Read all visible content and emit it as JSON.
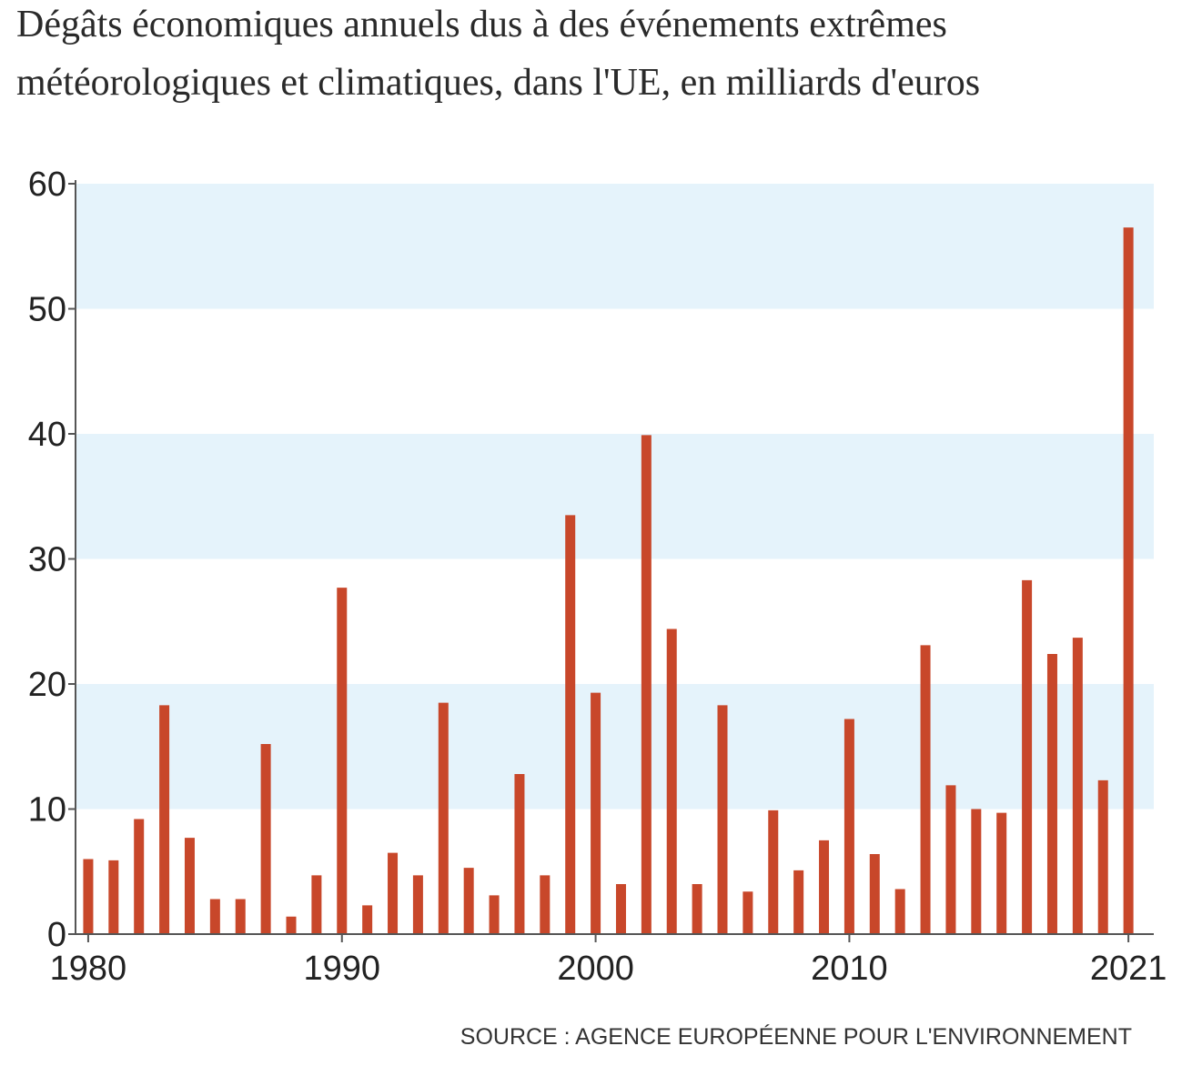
{
  "chart_data": {
    "type": "bar",
    "title": [
      "Dégâts économiques annuels dus à des événements extrêmes",
      "météorologiques et climatiques, dans l'UE, en milliards d'euros"
    ],
    "source": "SOURCE :  AGENCE EUROPÉENNE POUR L'ENVIRONNEMENT",
    "x": [
      1980,
      1981,
      1982,
      1983,
      1984,
      1985,
      1986,
      1987,
      1988,
      1989,
      1990,
      1991,
      1992,
      1993,
      1994,
      1995,
      1996,
      1997,
      1998,
      1999,
      2000,
      2001,
      2002,
      2003,
      2004,
      2005,
      2006,
      2007,
      2008,
      2009,
      2010,
      2011,
      2012,
      2013,
      2014,
      2015,
      2016,
      2017,
      2018,
      2019,
      2020,
      2021
    ],
    "values": [
      6.0,
      5.9,
      9.2,
      18.3,
      7.7,
      2.8,
      2.8,
      15.2,
      1.4,
      4.7,
      27.7,
      2.3,
      6.5,
      4.7,
      18.5,
      5.3,
      3.1,
      12.8,
      4.7,
      33.5,
      19.3,
      4.0,
      39.9,
      24.4,
      4.0,
      18.3,
      3.4,
      9.9,
      5.1,
      7.5,
      17.2,
      6.4,
      3.6,
      23.1,
      11.9,
      10.0,
      9.7,
      28.3,
      22.4,
      23.7,
      12.3,
      56.5
    ],
    "color": "#c8472a",
    "xlim": [
      1979.5,
      2022
    ],
    "xticks": [
      1980,
      1990,
      2000,
      2010,
      2021
    ],
    "ylim": [
      0,
      60
    ],
    "yticks": [
      0,
      10,
      20,
      30,
      40,
      50,
      60
    ],
    "grid": true,
    "grid_color": "#e5f3fb"
  }
}
